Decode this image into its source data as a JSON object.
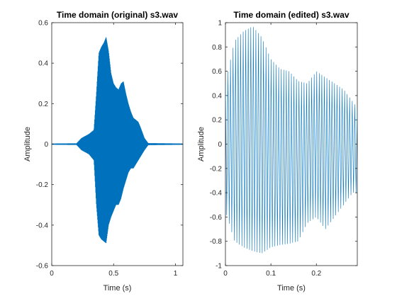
{
  "chart_data": [
    {
      "type": "line",
      "title": "Time domain (original) s3.wav",
      "xlabel": "Time (s)",
      "ylabel": "Amplitude",
      "xlim": [
        0,
        1.06
      ],
      "ylim": [
        -0.6,
        0.6
      ],
      "xticks": [
        0,
        0.5,
        1
      ],
      "xtick_labels": [
        "0",
        "0.5",
        "1"
      ],
      "yticks": [
        -0.6,
        -0.4,
        -0.2,
        0,
        0.2,
        0.4,
        0.6
      ],
      "ytick_labels": [
        "-0.6",
        "-0.4",
        "-0.2",
        "0",
        "0.2",
        "0.4",
        "0.6"
      ],
      "grid": false,
      "line_color": "#0072BD",
      "envelope": {
        "t": [
          0,
          0.2,
          0.24,
          0.3,
          0.34,
          0.36,
          0.38,
          0.4,
          0.42,
          0.44,
          0.46,
          0.48,
          0.5,
          0.52,
          0.54,
          0.56,
          0.58,
          0.6,
          0.62,
          0.64,
          0.66,
          0.68,
          0.7,
          0.72,
          0.75,
          0.78,
          1.06
        ],
        "max": [
          0.003,
          0.004,
          0.03,
          0.05,
          0.07,
          0.25,
          0.45,
          0.48,
          0.5,
          0.53,
          0.46,
          0.35,
          0.3,
          0.28,
          0.27,
          0.3,
          0.31,
          0.25,
          0.2,
          0.16,
          0.13,
          0.12,
          0.11,
          0.08,
          0.03,
          0.005,
          0.003
        ],
        "min": [
          -0.003,
          -0.004,
          -0.03,
          -0.05,
          -0.08,
          -0.3,
          -0.45,
          -0.47,
          -0.48,
          -0.49,
          -0.4,
          -0.36,
          -0.33,
          -0.3,
          -0.3,
          -0.27,
          -0.22,
          -0.18,
          -0.14,
          -0.12,
          -0.12,
          -0.1,
          -0.08,
          -0.06,
          -0.03,
          -0.005,
          -0.003
        ]
      }
    },
    {
      "type": "line",
      "title": "Time domain (edited) s3.wav",
      "xlabel": "Time (s)",
      "ylabel": "Amplitude",
      "xlim": [
        0,
        0.29
      ],
      "ylim": [
        -1,
        1
      ],
      "xticks": [
        0,
        0.1,
        0.2
      ],
      "xtick_labels": [
        "0",
        "0.1",
        "0.2"
      ],
      "yticks": [
        -1,
        -0.8,
        -0.6,
        -0.4,
        -0.2,
        0,
        0.2,
        0.4,
        0.6,
        0.8,
        1
      ],
      "ytick_labels": [
        "-1",
        "-0.8",
        "-0.6",
        "-0.4",
        "-0.2",
        "0",
        "0.2",
        "0.4",
        "0.6",
        "0.8",
        "1"
      ],
      "grid": false,
      "line_color": "#0072BD",
      "envelope": {
        "t": [
          0,
          0.02,
          0.04,
          0.06,
          0.08,
          0.1,
          0.12,
          0.14,
          0.16,
          0.18,
          0.2,
          0.22,
          0.24,
          0.26,
          0.28,
          0.29
        ],
        "max": [
          0.5,
          0.85,
          0.93,
          0.97,
          0.88,
          0.7,
          0.62,
          0.6,
          0.52,
          0.5,
          0.6,
          0.55,
          0.5,
          0.45,
          0.35,
          0.3
        ],
        "min": [
          -0.55,
          -0.8,
          -0.85,
          -0.88,
          -0.9,
          -0.85,
          -0.83,
          -0.82,
          -0.8,
          -0.65,
          -0.6,
          -0.7,
          -0.6,
          -0.5,
          -0.4,
          -0.4
        ]
      }
    }
  ]
}
